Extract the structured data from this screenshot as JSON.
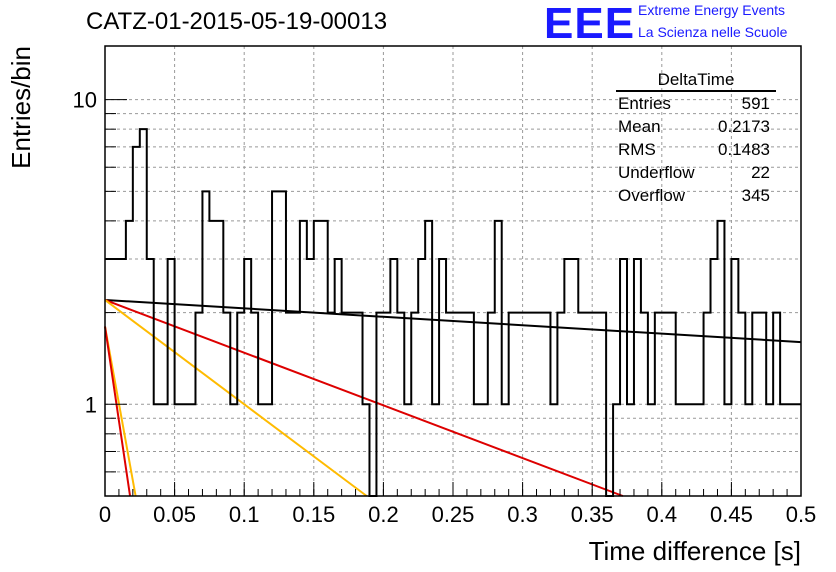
{
  "header": {
    "title": "CATZ-01-2015-05-19-00013",
    "logo": "EEE",
    "logo_line1": "Extreme Energy Events",
    "logo_line2": "La Scienza nelle Scuole"
  },
  "stats": {
    "title": "DeltaTime",
    "rows": [
      {
        "label": "Entries",
        "value": "591"
      },
      {
        "label": "Mean",
        "value": "0.2173"
      },
      {
        "label": "RMS",
        "value": "0.1483"
      },
      {
        "label": "Underflow",
        "value": "22"
      },
      {
        "label": "Overflow",
        "value": "345"
      }
    ]
  },
  "chart_data": {
    "type": "histogram",
    "title": "CATZ-01-2015-05-19-00013",
    "xlabel": "Time difference [s]",
    "ylabel": "Entries/bin",
    "xlim": [
      0,
      0.5
    ],
    "ylim": [
      0.5,
      15
    ],
    "y_scale": "log",
    "grid": true,
    "x_ticks": [
      "0",
      "0.05",
      "0.1",
      "0.15",
      "0.2",
      "0.25",
      "0.3",
      "0.35",
      "0.4",
      "0.45",
      "0.5"
    ],
    "y_ticks": [
      "1",
      "10"
    ],
    "bin_width": 0.005,
    "counts": [
      3,
      3,
      3,
      4,
      7,
      8,
      3,
      1,
      1,
      3,
      1,
      1,
      1,
      2,
      5,
      4,
      4,
      2,
      1,
      2,
      3,
      2,
      1,
      1,
      5,
      5,
      2,
      2,
      4,
      3,
      4,
      4,
      2,
      3,
      2,
      2,
      2,
      1,
      0,
      2,
      2,
      3,
      2,
      1,
      2,
      3,
      4,
      1,
      3,
      2,
      2,
      2,
      2,
      1,
      1,
      2,
      4,
      1,
      2,
      2,
      2,
      2,
      2,
      2,
      1,
      2,
      3,
      3,
      2,
      2,
      2,
      2,
      0,
      1,
      3,
      1,
      3,
      2,
      1,
      2,
      2,
      2,
      1,
      1,
      1,
      1,
      2,
      3,
      4,
      1,
      3,
      2,
      1,
      2,
      2,
      1,
      2,
      1,
      1,
      1
    ],
    "curves": [
      {
        "color": "#000000",
        "y0": 2.2,
        "y_end": 1.6,
        "x_end": 0.5
      },
      {
        "color": "#dd0000",
        "y0": 2.2,
        "y_end": 0.5,
        "x_end": 0.372
      },
      {
        "color": "#ffbb00",
        "y0": 2.2,
        "y_end": 0.5,
        "x_end": 0.188
      },
      {
        "color": "#ffbb00",
        "y0": 1.8,
        "y_end": 0.5,
        "x_end": 0.022
      },
      {
        "color": "#dd0000",
        "y0": 1.8,
        "y_end": 0.5,
        "x_end": 0.018
      }
    ]
  }
}
